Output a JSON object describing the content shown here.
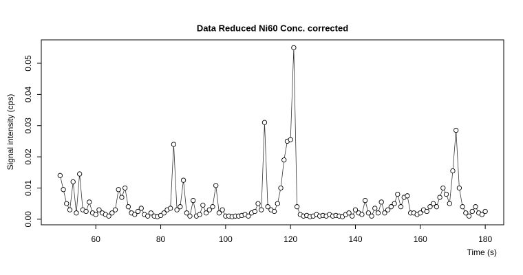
{
  "chart_data": {
    "type": "line",
    "markers": true,
    "title": "Data Reduced Ni60 Conc. corrected",
    "x_label": "Time (s)",
    "y_label": "Signal intensity (cps)",
    "color": "#000000",
    "x": [
      49,
      50,
      51,
      52,
      53,
      54,
      55,
      56,
      57,
      58,
      59,
      60,
      61,
      62,
      63,
      64,
      65,
      66,
      67,
      68,
      69,
      70,
      71,
      72,
      73,
      74,
      75,
      76,
      77,
      78,
      79,
      80,
      81,
      82,
      83,
      84,
      85,
      86,
      87,
      88,
      89,
      90,
      91,
      92,
      93,
      94,
      95,
      96,
      97,
      98,
      99,
      100,
      101,
      102,
      103,
      104,
      105,
      106,
      107,
      108,
      109,
      110,
      111,
      112,
      113,
      114,
      115,
      116,
      117,
      118,
      119,
      120,
      121,
      122,
      123,
      124,
      125,
      126,
      127,
      128,
      129,
      130,
      131,
      132,
      133,
      134,
      135,
      136,
      137,
      138,
      139,
      140,
      141,
      142,
      143,
      144,
      145,
      146,
      147,
      148,
      149,
      150,
      151,
      152,
      153,
      154,
      155,
      156,
      157,
      158,
      159,
      160,
      161,
      162,
      163,
      164,
      165,
      166,
      167,
      168,
      169,
      170,
      171,
      172,
      173,
      174,
      175,
      176,
      177,
      178,
      179,
      180
    ],
    "values": [
      0.014,
      0.0095,
      0.005,
      0.003,
      0.012,
      0.002,
      0.0145,
      0.003,
      0.0025,
      0.0055,
      0.002,
      0.0015,
      0.003,
      0.002,
      0.0015,
      0.001,
      0.002,
      0.003,
      0.0095,
      0.007,
      0.01,
      0.004,
      0.002,
      0.0015,
      0.0025,
      0.0035,
      0.0015,
      0.001,
      0.002,
      0.001,
      0.0008,
      0.0012,
      0.002,
      0.003,
      0.0035,
      0.024,
      0.003,
      0.004,
      0.0125,
      0.002,
      0.001,
      0.006,
      0.001,
      0.0015,
      0.0045,
      0.002,
      0.003,
      0.004,
      0.0108,
      0.002,
      0.003,
      0.001,
      0.001,
      0.0008,
      0.001,
      0.001,
      0.0012,
      0.0015,
      0.001,
      0.002,
      0.0025,
      0.005,
      0.003,
      0.031,
      0.004,
      0.003,
      0.0025,
      0.005,
      0.01,
      0.019,
      0.025,
      0.0255,
      0.055,
      0.004,
      0.0015,
      0.001,
      0.0012,
      0.0008,
      0.001,
      0.0015,
      0.001,
      0.0012,
      0.001,
      0.0015,
      0.001,
      0.0012,
      0.001,
      0.0008,
      0.0015,
      0.002,
      0.001,
      0.003,
      0.002,
      0.0015,
      0.006,
      0.002,
      0.001,
      0.0035,
      0.002,
      0.0055,
      0.002,
      0.003,
      0.004,
      0.005,
      0.008,
      0.004,
      0.007,
      0.0075,
      0.002,
      0.002,
      0.0015,
      0.002,
      0.003,
      0.0025,
      0.004,
      0.005,
      0.004,
      0.007,
      0.01,
      0.008,
      0.005,
      0.0155,
      0.0285,
      0.01,
      0.004,
      0.002,
      0.001,
      0.0025,
      0.004,
      0.002,
      0.0015,
      0.0025
    ],
    "xlim": [
      43.2,
      185.7
    ],
    "ylim": [
      -0.0018,
      0.0575
    ],
    "xticks": [
      60,
      80,
      100,
      120,
      140,
      160,
      180
    ],
    "yticks": [
      {
        "value": 0,
        "label": "0.00"
      },
      0.01,
      0.02,
      0.03,
      0.04,
      0.05
    ],
    "grid": false
  }
}
